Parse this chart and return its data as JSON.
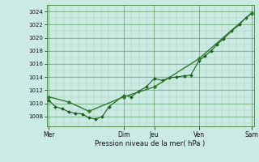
{
  "xlabel": "Pression niveau de la mer( hPa )",
  "ylim": [
    1006.5,
    1025.0
  ],
  "yticks": [
    1008,
    1010,
    1012,
    1014,
    1016,
    1018,
    1020,
    1022,
    1024
  ],
  "background_color": "#cceae4",
  "grid_color_major": "#4a8c4a",
  "grid_color_minor": "#88bb88",
  "line_color1": "#1a5c1a",
  "line_color2": "#2d7a2d",
  "day_labels": [
    "Mer",
    "Dim",
    "Jeu",
    "Ven",
    "Sam"
  ],
  "day_positions": [
    0.0,
    0.37,
    0.52,
    0.74,
    1.0
  ],
  "line1_x": [
    0.0,
    0.033,
    0.066,
    0.099,
    0.132,
    0.165,
    0.198,
    0.231,
    0.264,
    0.297,
    0.37,
    0.407,
    0.44,
    0.48,
    0.52,
    0.56,
    0.593,
    0.63,
    0.667,
    0.7,
    0.74,
    0.77,
    0.8,
    0.83,
    0.86,
    0.9,
    0.94,
    0.97,
    1.0
  ],
  "line1_y": [
    1010.5,
    1009.5,
    1009.2,
    1008.7,
    1008.5,
    1008.4,
    1007.8,
    1007.6,
    1008.0,
    1009.5,
    1011.2,
    1011.0,
    1011.8,
    1012.5,
    1013.8,
    1013.5,
    1013.9,
    1014.0,
    1014.2,
    1014.3,
    1016.5,
    1017.2,
    1018.0,
    1019.0,
    1019.8,
    1021.0,
    1022.0,
    1023.0,
    1023.7
  ],
  "line2_x": [
    0.0,
    0.099,
    0.198,
    0.37,
    0.52,
    0.74,
    1.0
  ],
  "line2_y": [
    1011.0,
    1010.2,
    1008.8,
    1011.0,
    1012.5,
    1016.8,
    1023.8
  ],
  "figsize": [
    3.2,
    2.0
  ],
  "dpi": 100
}
